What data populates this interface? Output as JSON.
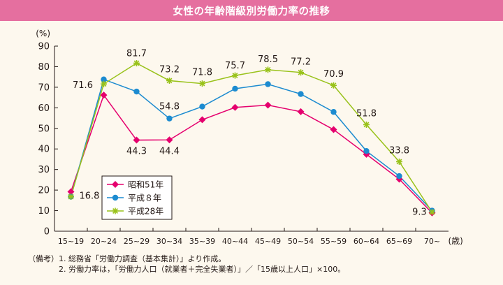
{
  "header": {
    "title": "女性の年齢階級別労働力率の推移"
  },
  "notes": {
    "lead": "（備考）",
    "items": [
      "1.  総務省「労働力調査（基本集計）」より作成。",
      "2.  労働力率は，「労働力人口（就業者＋完全失業者）」／「15歳以上人口」×100。"
    ]
  },
  "chart_data": {
    "type": "line",
    "ylabel": "(%)",
    "xlabel": "(歳)",
    "ylim": [
      0,
      90
    ],
    "yticks": [
      0,
      10,
      20,
      30,
      40,
      50,
      60,
      70,
      80,
      90
    ],
    "categories": [
      "15~19",
      "20~24",
      "25~29",
      "30~34",
      "35~39",
      "40~44",
      "45~49",
      "50~54",
      "55~59",
      "60~64",
      "65~69",
      "70~"
    ],
    "grid": false,
    "legend_position": "bottom-left",
    "series": [
      {
        "name": "昭和51年",
        "color": "#e5006e",
        "marker": "diamond",
        "values": [
          19.2,
          66.2,
          44.3,
          44.4,
          54.2,
          60.2,
          61.3,
          58.1,
          49.4,
          37.4,
          25.3,
          8.9
        ]
      },
      {
        "name": "平成８年",
        "color": "#1c8bd0",
        "marker": "circle",
        "values": [
          16.8,
          73.8,
          67.9,
          54.8,
          60.6,
          69.3,
          71.5,
          66.7,
          58.0,
          39.0,
          26.8,
          10.0
        ]
      },
      {
        "name": "平成28年",
        "color": "#99c21a",
        "marker": "star",
        "values": [
          16.8,
          71.6,
          81.7,
          73.2,
          71.8,
          75.7,
          78.5,
          77.2,
          70.9,
          51.8,
          33.8,
          9.3
        ]
      }
    ],
    "annotations": [
      {
        "text": "16.8",
        "series": 1,
        "index": 0
      },
      {
        "text": "71.6",
        "series": 2,
        "index": 1
      },
      {
        "text": "81.7",
        "series": 2,
        "index": 2
      },
      {
        "text": "44.3",
        "series": 0,
        "index": 2
      },
      {
        "text": "73.2",
        "series": 2,
        "index": 3
      },
      {
        "text": "54.8",
        "series": 1,
        "index": 3
      },
      {
        "text": "44.4",
        "series": 0,
        "index": 3
      },
      {
        "text": "71.8",
        "series": 2,
        "index": 4
      },
      {
        "text": "75.7",
        "series": 2,
        "index": 5
      },
      {
        "text": "78.5",
        "series": 2,
        "index": 6
      },
      {
        "text": "77.2",
        "series": 2,
        "index": 7
      },
      {
        "text": "70.9",
        "series": 2,
        "index": 8
      },
      {
        "text": "51.8",
        "series": 2,
        "index": 9
      },
      {
        "text": "33.8",
        "series": 2,
        "index": 10
      },
      {
        "text": "9.3",
        "series": 2,
        "index": 11
      }
    ]
  }
}
